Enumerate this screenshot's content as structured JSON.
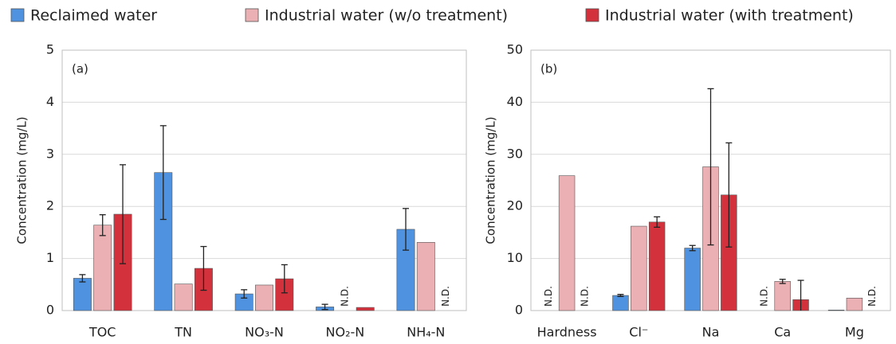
{
  "chart_data": {
    "type": "bar",
    "series": [
      {
        "name": "Reclaimed water",
        "color": "#4f93e0"
      },
      {
        "name": "Industrial water (w/o treatment)",
        "color": "#eab0b3"
      },
      {
        "name": "Industrial water (with treatment)",
        "color": "#d3323c"
      }
    ],
    "panels": [
      {
        "label": "(a)",
        "ylabel": "Concentration (mg/L)",
        "categories": [
          "TOC",
          "TN",
          "NO₃-N",
          "NO₂-N",
          "NH₄-N"
        ],
        "ylim": [
          0,
          5
        ],
        "yticks": [
          0,
          1,
          2,
          3,
          4,
          5
        ],
        "series": [
          {
            "values": [
              0.62,
              2.65,
              0.32,
              0.07,
              1.56
            ],
            "errors": [
              0.07,
              0.9,
              0.08,
              0.05,
              0.4
            ]
          },
          {
            "values": [
              1.64,
              0.51,
              0.49,
              null,
              1.31
            ],
            "errors": [
              0.2,
              null,
              null,
              null,
              null
            ],
            "value_labels": [
              null,
              null,
              null,
              "N.D.",
              null
            ]
          },
          {
            "values": [
              1.85,
              0.81,
              0.61,
              0.06,
              null
            ],
            "errors": [
              0.95,
              0.42,
              0.27,
              null,
              null
            ],
            "value_labels": [
              null,
              null,
              null,
              null,
              "N.D."
            ]
          }
        ]
      },
      {
        "label": "(b)",
        "ylabel": "Concentration (mg/L)",
        "categories": [
          "Hardness",
          "Cl⁻",
          "Na",
          "Ca",
          "Mg"
        ],
        "ylim": [
          0,
          50
        ],
        "yticks": [
          0,
          10,
          20,
          30,
          40,
          50
        ],
        "series": [
          {
            "values": [
              null,
              2.9,
              12,
              null,
              0.1
            ],
            "errors": [
              null,
              0.2,
              0.5,
              null,
              null
            ],
            "value_labels": [
              "N.D.",
              null,
              null,
              "N.D.",
              null
            ]
          },
          {
            "values": [
              25.9,
              16.2,
              27.6,
              5.6,
              2.4
            ],
            "errors": [
              null,
              null,
              15,
              0.4,
              null
            ]
          },
          {
            "values": [
              null,
              17,
              22.2,
              2.1,
              null
            ],
            "errors": [
              null,
              1,
              10,
              3.7,
              null
            ],
            "value_labels": [
              "N.D.",
              null,
              null,
              null,
              "N.D."
            ]
          }
        ]
      }
    ]
  }
}
